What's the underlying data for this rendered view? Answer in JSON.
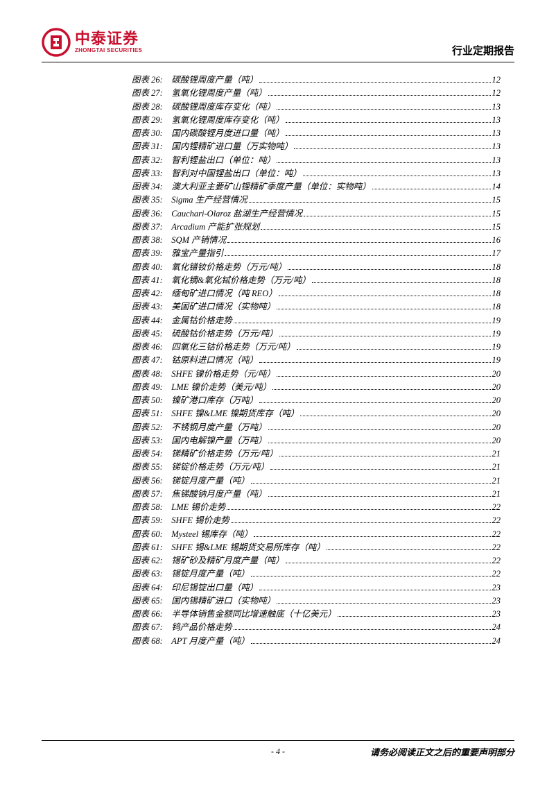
{
  "header": {
    "logo_cn": "中泰证券",
    "logo_en": "ZHONGTAI SECURITIES",
    "report_type": "行业定期报告",
    "logo_color": "#c8102e"
  },
  "toc": [
    {
      "label": "图表 26:",
      "title": "碳酸锂周度产量（吨）",
      "page": "12"
    },
    {
      "label": "图表 27:",
      "title": "氢氧化锂周度产量（吨）",
      "page": "12"
    },
    {
      "label": "图表 28:",
      "title": "碳酸锂周度库存变化（吨）",
      "page": "13"
    },
    {
      "label": "图表 29:",
      "title": "氢氧化锂周度库存变化（吨）",
      "page": "13"
    },
    {
      "label": "图表 30:",
      "title": "国内碳酸锂月度进口量（吨）",
      "page": "13"
    },
    {
      "label": "图表 31:",
      "title": "国内锂精矿进口量（万实物吨）",
      "page": "13"
    },
    {
      "label": "图表 32:",
      "title": "智利锂盐出口（单位：吨）",
      "page": "13"
    },
    {
      "label": "图表 33:",
      "title": "智利对中国锂盐出口（单位：吨）",
      "page": "13"
    },
    {
      "label": "图表 34:",
      "title": "澳大利亚主要矿山锂精矿季度产量（单位：实物吨）",
      "page": "14"
    },
    {
      "label": "图表 35:",
      "title": "Sigma 生产经营情况",
      "page": "15"
    },
    {
      "label": "图表 36:",
      "title": "Cauchari-Olaroz 盐湖生产经营情况",
      "page": "15"
    },
    {
      "label": "图表 37:",
      "title": "Arcadium 产能扩张规划",
      "page": "15"
    },
    {
      "label": "图表 38:",
      "title": "SQM 产销情况",
      "page": "16"
    },
    {
      "label": "图表 39:",
      "title": "雅宝产量指引",
      "page": "17"
    },
    {
      "label": "图表 40:",
      "title": "氧化镨钕价格走势（万元/吨）",
      "page": "18"
    },
    {
      "label": "图表 41:",
      "title": "氧化镝&氧化铽价格走势（万元/吨）",
      "page": "18"
    },
    {
      "label": "图表 42:",
      "title": "缅甸矿进口情况（吨 REO）",
      "page": "18"
    },
    {
      "label": "图表 43:",
      "title": "美国矿进口情况（实物吨）",
      "page": "18"
    },
    {
      "label": "图表 44:",
      "title": "金属钴价格走势",
      "page": "19"
    },
    {
      "label": "图表 45:",
      "title": "硫酸钴价格走势（万元/吨）",
      "page": "19"
    },
    {
      "label": "图表 46:",
      "title": "四氧化三钴价格走势（万元/吨）",
      "page": "19"
    },
    {
      "label": "图表 47:",
      "title": "钴原料进口情况（吨）",
      "page": "19"
    },
    {
      "label": "图表 48:",
      "title": "SHFE 镍价格走势（元/吨）",
      "page": "20"
    },
    {
      "label": "图表 49:",
      "title": "LME 镍价走势（美元/吨）",
      "page": "20"
    },
    {
      "label": "图表 50:",
      "title": "镍矿港口库存（万吨）",
      "page": "20"
    },
    {
      "label": "图表 51:",
      "title": "SHFE 镍&LME 镍期货库存（吨）",
      "page": "20"
    },
    {
      "label": "图表 52:",
      "title": "不锈钢月度产量（万吨）",
      "page": "20"
    },
    {
      "label": "图表 53:",
      "title": "国内电解镍产量（万吨）",
      "page": "20"
    },
    {
      "label": "图表 54:",
      "title": "锑精矿价格走势（万元/吨）",
      "page": "21"
    },
    {
      "label": "图表 55:",
      "title": "锑锭价格走势（万元/吨）",
      "page": "21"
    },
    {
      "label": "图表 56:",
      "title": "锑锭月度产量（吨）",
      "page": "21"
    },
    {
      "label": "图表 57:",
      "title": "焦锑酸钠月度产量（吨）",
      "page": "21"
    },
    {
      "label": "图表 58:",
      "title": "LME 锡价走势",
      "page": "22"
    },
    {
      "label": "图表 59:",
      "title": "SHFE 锡价走势",
      "page": "22"
    },
    {
      "label": "图表 60:",
      "title": "Mysteel 锡库存（吨）",
      "page": "22"
    },
    {
      "label": "图表 61:",
      "title": "SHFE 锡&LME 锡期货交易所库存（吨）",
      "page": "22"
    },
    {
      "label": "图表 62:",
      "title": "锡矿砂及精矿月度产量（吨）",
      "page": "22"
    },
    {
      "label": "图表 63:",
      "title": "锡锭月度产量（吨）",
      "page": "22"
    },
    {
      "label": "图表 64:",
      "title": "印尼锡锭出口量（吨）",
      "page": "23"
    },
    {
      "label": "图表 65:",
      "title": "国内锡精矿进口（实物吨）",
      "page": "23"
    },
    {
      "label": "图表 66:",
      "title": "半导体销售金额同比增速触底（十亿美元）",
      "page": "23"
    },
    {
      "label": "图表 67:",
      "title": "钨产品价格走势",
      "page": "24"
    },
    {
      "label": "图表 68:",
      "title": "APT 月度产量（吨）",
      "page": "24"
    }
  ],
  "footer": {
    "page_number": "- 4 -",
    "disclaimer": "请务必阅读正文之后的重要声明部分"
  }
}
